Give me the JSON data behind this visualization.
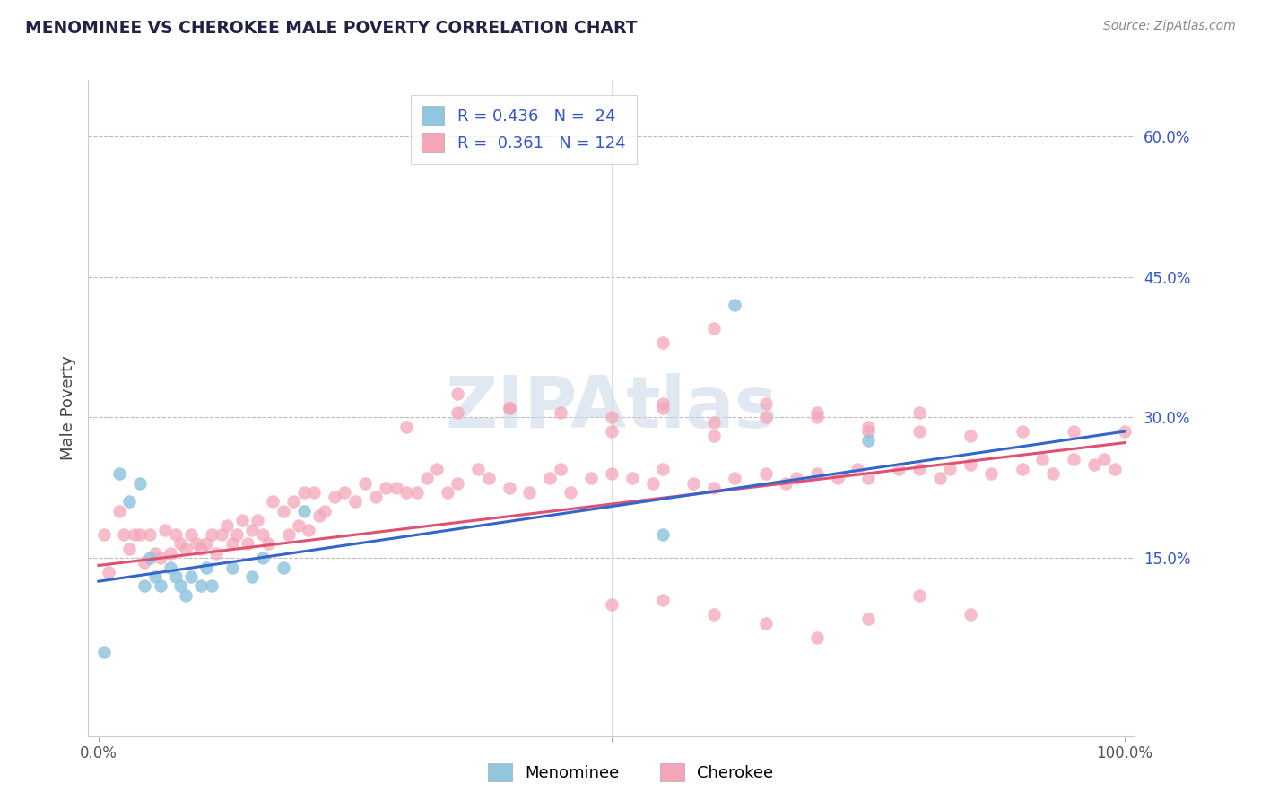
{
  "title": "MENOMINEE VS CHEROKEE MALE POVERTY CORRELATION CHART",
  "source_text": "Source: ZipAtlas.com",
  "ylabel": "Male Poverty",
  "xlim": [
    -0.01,
    1.01
  ],
  "ylim": [
    -0.04,
    0.66
  ],
  "xticks": [
    0.0,
    0.5,
    1.0
  ],
  "xticklabels": [
    "0.0%",
    "",
    "100.0%"
  ],
  "yticks_left": [],
  "yticks_right": [
    0.15,
    0.3,
    0.45,
    0.6
  ],
  "yticklabels_right": [
    "15.0%",
    "30.0%",
    "45.0%",
    "60.0%"
  ],
  "menominee_color": "#92C5DE",
  "cherokee_color": "#F4A6B8",
  "menominee_line_color": "#3366CC",
  "cherokee_line_color": "#E05070",
  "menominee_R": 0.436,
  "menominee_N": 24,
  "cherokee_R": 0.361,
  "cherokee_N": 124,
  "watermark": "ZIPAtlas",
  "watermark_color": "#C8D8E8",
  "background_color": "#FFFFFF",
  "grid_color": "#BBBBBB",
  "title_color": "#222244",
  "legend_text_color": "#3355CC",
  "source_color": "#888888",
  "menominee_line_start_y": 0.125,
  "menominee_line_end_y": 0.285,
  "cherokee_line_start_y": 0.142,
  "cherokee_line_end_y": 0.273,
  "menominee_x": [
    0.005,
    0.02,
    0.03,
    0.04,
    0.045,
    0.05,
    0.055,
    0.06,
    0.07,
    0.075,
    0.08,
    0.085,
    0.09,
    0.1,
    0.105,
    0.11,
    0.13,
    0.15,
    0.16,
    0.18,
    0.2,
    0.55,
    0.62,
    0.75
  ],
  "menominee_y": [
    0.05,
    0.24,
    0.21,
    0.23,
    0.12,
    0.15,
    0.13,
    0.12,
    0.14,
    0.13,
    0.12,
    0.11,
    0.13,
    0.12,
    0.14,
    0.12,
    0.14,
    0.13,
    0.15,
    0.14,
    0.2,
    0.175,
    0.42,
    0.275
  ],
  "cherokee_x": [
    0.005,
    0.01,
    0.02,
    0.025,
    0.03,
    0.035,
    0.04,
    0.045,
    0.05,
    0.055,
    0.06,
    0.065,
    0.07,
    0.075,
    0.08,
    0.085,
    0.09,
    0.095,
    0.1,
    0.105,
    0.11,
    0.115,
    0.12,
    0.125,
    0.13,
    0.135,
    0.14,
    0.145,
    0.15,
    0.155,
    0.16,
    0.165,
    0.17,
    0.18,
    0.185,
    0.19,
    0.195,
    0.2,
    0.205,
    0.21,
    0.215,
    0.22,
    0.23,
    0.24,
    0.25,
    0.26,
    0.27,
    0.28,
    0.29,
    0.3,
    0.31,
    0.32,
    0.33,
    0.34,
    0.35,
    0.37,
    0.38,
    0.4,
    0.42,
    0.44,
    0.45,
    0.46,
    0.48,
    0.5,
    0.52,
    0.54,
    0.55,
    0.58,
    0.6,
    0.62,
    0.65,
    0.67,
    0.68,
    0.7,
    0.72,
    0.74,
    0.75,
    0.78,
    0.8,
    0.82,
    0.83,
    0.85,
    0.87,
    0.9,
    0.92,
    0.93,
    0.95,
    0.97,
    0.98,
    0.99,
    0.35,
    0.4,
    0.5,
    0.55,
    0.6,
    0.65,
    0.7,
    0.75,
    0.8,
    0.55,
    0.6,
    0.3,
    0.35,
    0.4,
    0.45,
    0.5,
    0.55,
    0.6,
    0.65,
    0.7,
    0.75,
    0.8,
    0.85,
    0.9,
    0.95,
    1.0,
    0.5,
    0.55,
    0.6,
    0.65,
    0.7,
    0.75,
    0.8,
    0.85
  ],
  "cherokee_y": [
    0.175,
    0.135,
    0.2,
    0.175,
    0.16,
    0.175,
    0.175,
    0.145,
    0.175,
    0.155,
    0.15,
    0.18,
    0.155,
    0.175,
    0.165,
    0.16,
    0.175,
    0.165,
    0.16,
    0.165,
    0.175,
    0.155,
    0.175,
    0.185,
    0.165,
    0.175,
    0.19,
    0.165,
    0.18,
    0.19,
    0.175,
    0.165,
    0.21,
    0.2,
    0.175,
    0.21,
    0.185,
    0.22,
    0.18,
    0.22,
    0.195,
    0.2,
    0.215,
    0.22,
    0.21,
    0.23,
    0.215,
    0.225,
    0.225,
    0.22,
    0.22,
    0.235,
    0.245,
    0.22,
    0.23,
    0.245,
    0.235,
    0.225,
    0.22,
    0.235,
    0.245,
    0.22,
    0.235,
    0.24,
    0.235,
    0.23,
    0.245,
    0.23,
    0.225,
    0.235,
    0.24,
    0.23,
    0.235,
    0.24,
    0.235,
    0.245,
    0.235,
    0.245,
    0.245,
    0.235,
    0.245,
    0.25,
    0.24,
    0.245,
    0.255,
    0.24,
    0.255,
    0.25,
    0.255,
    0.245,
    0.325,
    0.31,
    0.3,
    0.315,
    0.295,
    0.315,
    0.305,
    0.29,
    0.305,
    0.38,
    0.395,
    0.29,
    0.305,
    0.31,
    0.305,
    0.285,
    0.31,
    0.28,
    0.3,
    0.3,
    0.285,
    0.285,
    0.28,
    0.285,
    0.285,
    0.285,
    0.1,
    0.105,
    0.09,
    0.08,
    0.065,
    0.085,
    0.11,
    0.09
  ]
}
